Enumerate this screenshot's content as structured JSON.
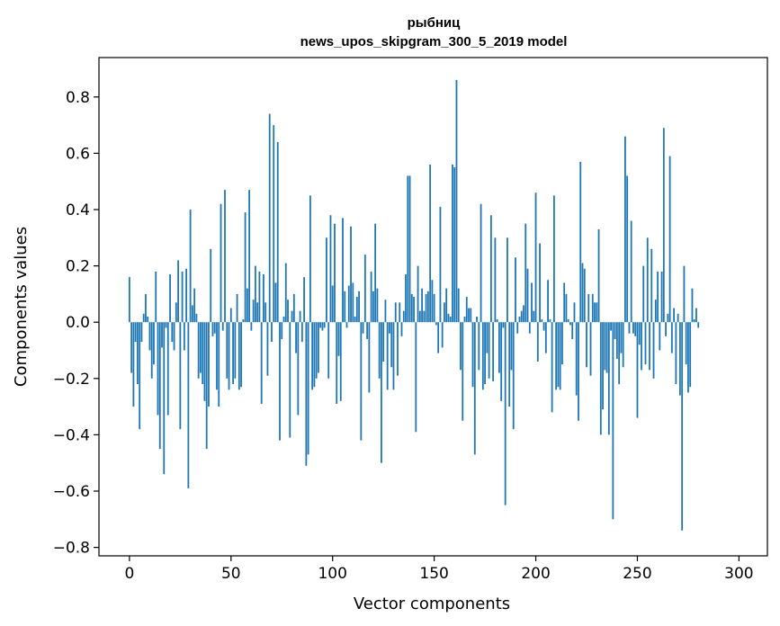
{
  "chart_data": {
    "type": "bar",
    "title": "рыбниц",
    "subtitle": "news_upos_skipgram_300_5_2019 model",
    "xlabel": "Vector components",
    "ylabel": "Components values",
    "xlim": [
      -15,
      314
    ],
    "ylim": [
      -0.83,
      0.94
    ],
    "xticks": [
      0,
      50,
      100,
      150,
      200,
      250,
      300
    ],
    "yticks": [
      -0.8,
      -0.6,
      -0.4,
      -0.2,
      0.0,
      0.2,
      0.4,
      0.6,
      0.8
    ],
    "ytick_labels": [
      "−0.8",
      "−0.6",
      "−0.4",
      "−0.2",
      "0.0",
      "0.2",
      "0.4",
      "0.6",
      "0.8"
    ],
    "grid": false,
    "bar_color": "#1f77b4",
    "values": [
      0.16,
      -0.18,
      -0.3,
      -0.07,
      -0.22,
      -0.38,
      -0.07,
      0.03,
      0.1,
      0.02,
      -0.1,
      -0.2,
      -0.15,
      0.18,
      -0.33,
      -0.45,
      -0.09,
      -0.54,
      -0.02,
      -0.33,
      0.17,
      -0.07,
      -0.1,
      0.07,
      0.22,
      -0.38,
      0.18,
      -0.1,
      0.19,
      -0.59,
      0.4,
      0.06,
      0.12,
      0.03,
      -0.2,
      -0.18,
      -0.22,
      -0.28,
      -0.45,
      -0.3,
      0.26,
      -0.05,
      -0.04,
      -0.24,
      -0.3,
      0.42,
      -0.03,
      0.47,
      -0.2,
      -0.24,
      0.05,
      -0.22,
      -0.2,
      0.1,
      -0.24,
      -0.23,
      0.01,
      0.39,
      0.12,
      0.47,
      -0.03,
      0.08,
      0.2,
      0.07,
      0.18,
      -0.29,
      0.17,
      0.07,
      -0.19,
      0.74,
      -0.07,
      0.7,
      0.14,
      0.64,
      -0.42,
      -0.06,
      0.02,
      0.21,
      0.08,
      -0.41,
      0.04,
      0.1,
      -0.11,
      -0.33,
      0.04,
      -0.07,
      0.16,
      -0.51,
      -0.47,
      0.45,
      -0.24,
      -0.23,
      -0.2,
      -0.18,
      -0.02,
      -0.03,
      -0.02,
      0.3,
      -0.2,
      0.38,
      0.13,
      0.35,
      -0.29,
      -0.12,
      -0.28,
      0.37,
      0.11,
      -0.02,
      0.13,
      0.34,
      0.14,
      0.02,
      0.09,
      0.11,
      -0.42,
      -0.04,
      0.24,
      -0.06,
      -0.25,
      0.18,
      0.11,
      0.35,
      0.12,
      -0.2,
      -0.5,
      -0.14,
      0.08,
      -0.24,
      -0.04,
      -0.16,
      -0.24,
      0.07,
      -0.19,
      0.07,
      -0.05,
      0.04,
      0.17,
      0.52,
      0.52,
      0.1,
      0.09,
      -0.39,
      0.2,
      0.04,
      0.12,
      0.04,
      0.1,
      0.11,
      0.56,
      0.15,
      0.1,
      -0.01,
      -0.11,
      0.41,
      -0.09,
      0.07,
      0.12,
      0.03,
      0.02,
      0.56,
      0.55,
      0.86,
      0.12,
      -0.17,
      -0.35,
      0.02,
      0.09,
      0.05,
      0.05,
      -0.23,
      -0.47,
      0.02,
      -0.17,
      0.42,
      -0.24,
      -0.22,
      -0.11,
      -0.2,
      0.38,
      -0.21,
      0.3,
      0.01,
      -0.18,
      -0.28,
      -0.02,
      -0.65,
      0.3,
      -0.3,
      -0.17,
      -0.38,
      0.23,
      -0.04,
      0.02,
      0.04,
      0.06,
      0.35,
      0.19,
      -0.04,
      0.14,
      0.04,
      0.46,
      -0.14,
      0.28,
      0.01,
      -0.03,
      -0.11,
      0.15,
      0.01,
      -0.32,
      0.45,
      -0.24,
      -0.23,
      -0.24,
      -0.15,
      0.14,
      0.1,
      0.01,
      -0.01,
      -0.06,
      0.07,
      -0.26,
      -0.35,
      0.57,
      0.21,
      0.19,
      -0.16,
      0.1,
      -0.19,
      0.1,
      0.07,
      0.07,
      0.33,
      -0.4,
      -0.31,
      -0.17,
      -0.18,
      -0.4,
      -0.03,
      -0.7,
      -0.06,
      -0.13,
      -0.22,
      -0.11,
      -0.16,
      0.66,
      0.52,
      -0.04,
      0.36,
      -0.04,
      -0.05,
      -0.34,
      -0.08,
      -0.17,
      0.2,
      -0.15,
      0.3,
      -0.17,
      0.26,
      -0.2,
      0.08,
      0.18,
      -0.1,
      0.18,
      0.69,
      -0.05,
      0.03,
      0.59,
      -0.11,
      0.05,
      -0.22,
      0.03,
      -0.26,
      -0.74,
      0.2,
      -0.15,
      -0.25,
      -0.23,
      0.12,
      0.01,
      0.05,
      -0.02
    ]
  }
}
